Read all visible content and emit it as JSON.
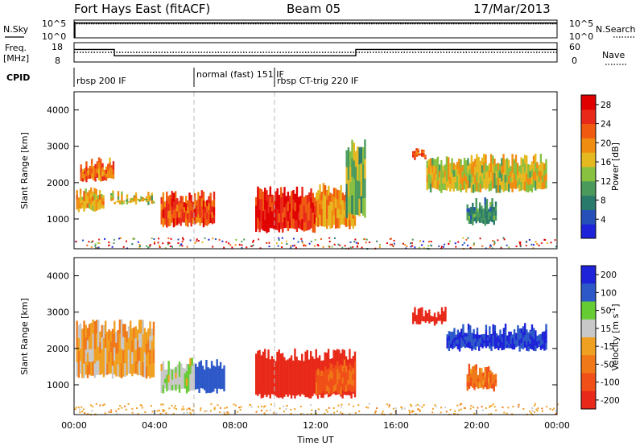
{
  "header": {
    "title_left": "Fort Hays East (fitACF)",
    "title_center": "Beam 05",
    "date": "17/Mar/2013"
  },
  "labels": {
    "nsky": "N.Sky",
    "nsearch": "N.Search",
    "freq": "Freq.",
    "freq_unit": "[MHz]",
    "nave": "Nave",
    "cpid": "CPID",
    "slant_range": "Slant Range [km]",
    "time_ut": "Time UT"
  },
  "noise_panel": {
    "left_ticks": [
      "10^5",
      "10^0"
    ],
    "right_ticks": [
      "10^5",
      "10^0"
    ]
  },
  "freq_panel": {
    "left_ticks": [
      "18",
      "8"
    ],
    "right_ticks": [
      "60",
      "0"
    ]
  },
  "cpid_modes": [
    {
      "label": "rbsp 200 IF",
      "start": "00:00"
    },
    {
      "label": "normal (fast) 151 IF",
      "start": "06:00"
    },
    {
      "label": "rbsp CT-trig 220 IF",
      "start": "10:00"
    }
  ],
  "x_ticks": [
    "00:00",
    "04:00",
    "08:00",
    "12:00",
    "16:00",
    "20:00",
    "00:00"
  ],
  "y_ticks": [
    "1000",
    "2000",
    "3000",
    "4000"
  ],
  "power_colorbar": {
    "label": "Power [dB]",
    "ticks": [
      "4",
      "8",
      "12",
      "16",
      "20",
      "24",
      "28"
    ],
    "colors": [
      "#1e22d8",
      "#2550b8",
      "#2a7a6c",
      "#4a9a5c",
      "#88c040",
      "#e6b820",
      "#f08c10",
      "#f05a10",
      "#e82818",
      "#e00000"
    ]
  },
  "velocity_colorbar": {
    "label": "Velocity [m s^-1]",
    "ticks": [
      "200",
      "100",
      "50",
      "15",
      "-15",
      "-50",
      "-100",
      "-200"
    ],
    "colors": [
      "#1e22d8",
      "#2c58c8",
      "#66cc33",
      "#c8c8c8",
      "#f0a020",
      "#f07818",
      "#f05018",
      "#e82818"
    ]
  },
  "chart_data": [
    {
      "type": "line",
      "title": "Fort Hays East (fitACF) Beam 05 17/Mar/2013",
      "panel": "noise",
      "x_range": [
        "00:00",
        "24:00"
      ],
      "series": [
        {
          "name": "N.Sky",
          "style": "solid",
          "level_log10": 4.2
        },
        {
          "name": "N.Search",
          "style": "dotted",
          "level_log10": 4.0
        }
      ]
    },
    {
      "type": "line",
      "panel": "frequency",
      "x": [
        0,
        2,
        2,
        14,
        14,
        24
      ],
      "series": [
        {
          "name": "Freq. [MHz]",
          "values": [
            14.5,
            14.5,
            11.2,
            11.2,
            14.5,
            14.5
          ]
        },
        {
          "name": "Nave",
          "style": "dotted",
          "values": [
            13.0,
            13.0,
            13.0,
            13.0,
            13.0,
            13.0
          ]
        }
      ]
    },
    {
      "type": "heatmap",
      "panel": "power",
      "xlabel": "Time UT",
      "ylabel": "Slant Range [km]",
      "xlim": [
        0,
        24
      ],
      "ylim": [
        180,
        4500
      ],
      "colorbar": "Power [dB]",
      "regions": [
        {
          "t0": 0.1,
          "t1": 1.5,
          "r0": 1250,
          "r1": 1900,
          "level": 18
        },
        {
          "t0": 0.3,
          "t1": 2.0,
          "r0": 2100,
          "r1": 2700,
          "level": 22
        },
        {
          "t0": 1.8,
          "t1": 4.0,
          "r0": 1450,
          "r1": 1800,
          "level": 16
        },
        {
          "t0": 4.3,
          "t1": 7.0,
          "r0": 850,
          "r1": 1800,
          "level": 25
        },
        {
          "t0": 9.0,
          "t1": 12.0,
          "r0": 700,
          "r1": 1900,
          "level": 27
        },
        {
          "t0": 12.0,
          "t1": 14.0,
          "r0": 800,
          "r1": 2000,
          "level": 20
        },
        {
          "t0": 13.5,
          "t1": 14.5,
          "r0": 1100,
          "r1": 3200,
          "level": 12
        },
        {
          "t0": 16.8,
          "t1": 17.5,
          "r0": 2700,
          "r1": 3100,
          "level": 24
        },
        {
          "t0": 17.5,
          "t1": 23.5,
          "r0": 1800,
          "r1": 2800,
          "level": 16
        },
        {
          "t0": 19.5,
          "t1": 21.0,
          "r0": 900,
          "r1": 1600,
          "level": 8
        }
      ]
    },
    {
      "type": "heatmap",
      "panel": "velocity",
      "xlabel": "Time UT",
      "ylabel": "Slant Range [km]",
      "xlim": [
        0,
        24
      ],
      "ylim": [
        180,
        4500
      ],
      "colorbar": "Velocity [m s^-1]",
      "regions": [
        {
          "t0": 0.1,
          "t1": 4.0,
          "r0": 1250,
          "r1": 2800,
          "level": 0
        },
        {
          "t0": 4.3,
          "t1": 6.0,
          "r0": 850,
          "r1": 1750,
          "level": 40
        },
        {
          "t0": 6.0,
          "t1": 7.5,
          "r0": 850,
          "r1": 1750,
          "level": 150
        },
        {
          "t0": 9.0,
          "t1": 14.0,
          "r0": 700,
          "r1": 2000,
          "level": -180
        },
        {
          "t0": 12.0,
          "t1": 14.0,
          "r0": 800,
          "r1": 1700,
          "level": -70
        },
        {
          "t0": 16.8,
          "t1": 18.5,
          "r0": 2700,
          "r1": 3200,
          "level": -150
        },
        {
          "t0": 18.5,
          "t1": 23.5,
          "r0": 2000,
          "r1": 2700,
          "level": 200
        },
        {
          "t0": 19.5,
          "t1": 21.0,
          "r0": 900,
          "r1": 1600,
          "level": -40
        }
      ]
    }
  ]
}
